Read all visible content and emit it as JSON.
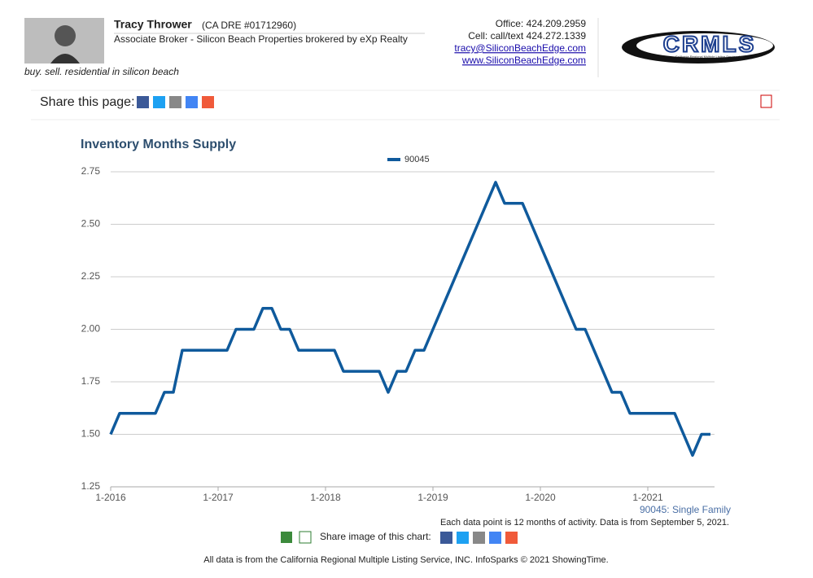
{
  "header": {
    "name": "Tracy Thrower",
    "license": "(CA DRE #01712960)",
    "role": "Associate Broker - Silicon Beach Properties brokered by eXp Realty",
    "tagline": "buy. sell. residential in silicon beach",
    "office": "Office: 424.209.2959",
    "cell": "Cell: call/text 424.272.1339",
    "email": "tracy@SiliconBeachEdge.com",
    "website": "www.SiliconBeachEdge.com",
    "logo": "CRMLS",
    "logo_tagline": "California Regional Multiple Listing Service, Inc."
  },
  "share_label": "Share this page:",
  "chart_data": {
    "type": "line",
    "title": "Inventory Months Supply",
    "categories": [
      "1-2016",
      null,
      null,
      null,
      null,
      null,
      null,
      null,
      null,
      null,
      null,
      null,
      "1-2017",
      null,
      null,
      null,
      null,
      null,
      null,
      null,
      null,
      null,
      null,
      null,
      "1-2018",
      null,
      null,
      null,
      null,
      null,
      null,
      null,
      null,
      null,
      null,
      null,
      "1-2019",
      null,
      null,
      null,
      null,
      null,
      null,
      null,
      null,
      null,
      null,
      null,
      "1-2020",
      null,
      null,
      null,
      null,
      null,
      null,
      null,
      null,
      null,
      null,
      null,
      "1-2021",
      null,
      null,
      null,
      null,
      null,
      null,
      null
    ],
    "series": [
      {
        "name": "90045",
        "color": "#0f5a9c",
        "values": [
          1.5,
          1.6,
          1.6,
          1.6,
          1.6,
          1.6,
          1.7,
          1.7,
          1.9,
          1.9,
          1.9,
          1.9,
          1.9,
          1.9,
          2.0,
          2.0,
          2.0,
          2.1,
          2.1,
          2.0,
          2.0,
          1.9,
          1.9,
          1.9,
          1.9,
          1.9,
          1.8,
          1.8,
          1.8,
          1.8,
          1.8,
          1.7,
          1.8,
          1.8,
          1.9,
          1.9,
          2.0,
          2.1,
          2.2,
          2.3,
          2.4,
          2.5,
          2.6,
          2.7,
          2.6,
          2.6,
          2.6,
          2.5,
          2.4,
          2.3,
          2.2,
          2.1,
          2.0,
          2.0,
          1.9,
          1.8,
          1.7,
          1.7,
          1.6,
          1.6,
          1.6,
          1.6,
          1.6,
          1.6,
          1.5,
          1.4,
          1.5,
          1.5
        ]
      }
    ],
    "ylim": [
      1.25,
      2.75
    ],
    "yticks": [
      {
        "value": 1.25,
        "label": "1.25"
      },
      {
        "value": 1.5,
        "label": "1.50"
      },
      {
        "value": 1.75,
        "label": "1.75"
      },
      {
        "value": 2,
        "label": "2.00"
      },
      {
        "value": 2.25,
        "label": "2.25"
      },
      {
        "value": 2.5,
        "label": "2.50"
      },
      {
        "value": 2.75,
        "label": "2.75"
      }
    ],
    "grid": true,
    "legend": "top",
    "subtitle": "90045: Single Family",
    "note": "Each data point is 12 months of activity. Data is from September 5, 2021."
  },
  "share_image_label": "Share image of this chart:",
  "footer": "All data is from the California Regional Multiple Listing Service, INC. InfoSparks © 2021 ShowingTime."
}
